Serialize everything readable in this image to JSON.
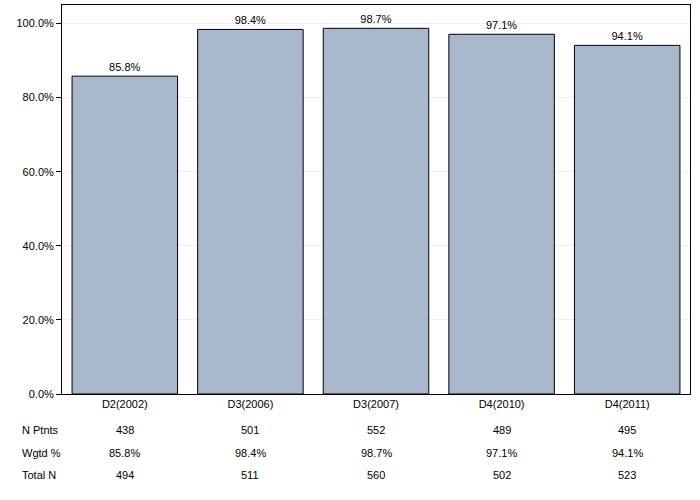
{
  "chart_data": {
    "type": "bar",
    "categories": [
      "D2(2002)",
      "D3(2006)",
      "D3(2007)",
      "D4(2010)",
      "D4(2011)"
    ],
    "values": [
      85.8,
      98.4,
      98.7,
      97.1,
      94.1
    ],
    "value_labels": [
      "85.8%",
      "98.4%",
      "98.7%",
      "97.1%",
      "94.1%"
    ],
    "color": "#a9b8cc",
    "ylim": [
      0,
      105
    ],
    "yticks": [
      {
        "value": 0,
        "label": "0.0%"
      },
      {
        "value": 20,
        "label": "20.0%"
      },
      {
        "value": 40,
        "label": "40.0%"
      },
      {
        "value": 60,
        "label": "60.0%"
      },
      {
        "value": 80,
        "label": "80.0%"
      },
      {
        "value": 100,
        "label": "100.0%"
      }
    ],
    "grid": true,
    "data_labels": true,
    "table": {
      "rows": [
        {
          "label": "N Ptnts",
          "values": [
            438,
            501,
            552,
            489,
            495
          ]
        },
        {
          "label": "Wgtd %",
          "values": [
            "85.8%",
            "98.4%",
            "98.7%",
            "97.1%",
            "94.1%"
          ]
        },
        {
          "label": "Total N",
          "values": [
            494,
            511,
            560,
            502,
            523
          ]
        }
      ]
    }
  }
}
